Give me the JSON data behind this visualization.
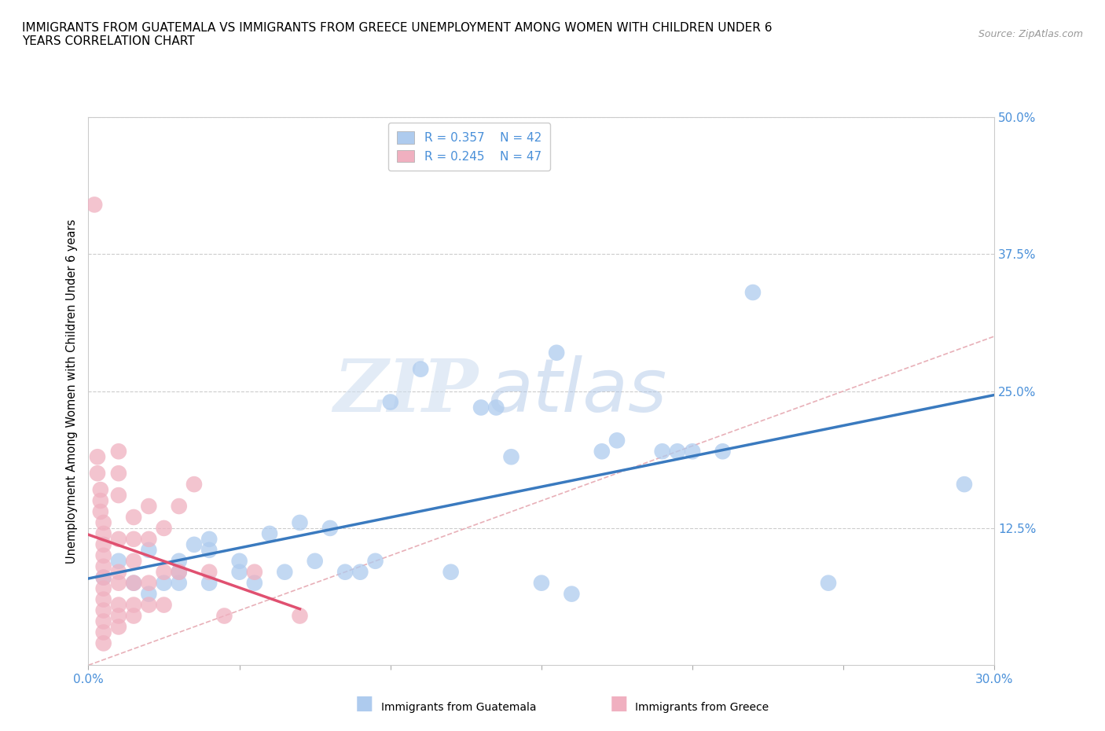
{
  "title_line1": "IMMIGRANTS FROM GUATEMALA VS IMMIGRANTS FROM GREECE UNEMPLOYMENT AMONG WOMEN WITH CHILDREN UNDER 6",
  "title_line2": "YEARS CORRELATION CHART",
  "source_text": "Source: ZipAtlas.com",
  "ylabel_text": "Unemployment Among Women with Children Under 6 years",
  "xlim": [
    0.0,
    0.3
  ],
  "ylim": [
    0.0,
    0.5
  ],
  "xticks": [
    0.0,
    0.05,
    0.1,
    0.15,
    0.2,
    0.25,
    0.3
  ],
  "xticklabels": [
    "0.0%",
    "",
    "",
    "",
    "",
    "",
    "30.0%"
  ],
  "yticks": [
    0.0,
    0.125,
    0.25,
    0.375,
    0.5
  ],
  "yticklabels_right": [
    "",
    "12.5%",
    "25.0%",
    "37.5%",
    "50.0%"
  ],
  "guatemala_color": "#aecbee",
  "greece_color": "#f0b0c0",
  "guatemala_line_color": "#3a7abf",
  "greece_line_color": "#e05070",
  "ref_line_color": "#e8b0b8",
  "legend_R_guatemala": "R = 0.357",
  "legend_N_guatemala": "N = 42",
  "legend_R_greece": "R = 0.245",
  "legend_N_greece": "N = 47",
  "watermark_zip": "ZIP",
  "watermark_atlas": "atlas",
  "guatemala_points": [
    [
      0.005,
      0.08
    ],
    [
      0.01,
      0.095
    ],
    [
      0.015,
      0.075
    ],
    [
      0.02,
      0.065
    ],
    [
      0.02,
      0.105
    ],
    [
      0.025,
      0.075
    ],
    [
      0.03,
      0.085
    ],
    [
      0.03,
      0.075
    ],
    [
      0.03,
      0.095
    ],
    [
      0.035,
      0.11
    ],
    [
      0.04,
      0.075
    ],
    [
      0.04,
      0.115
    ],
    [
      0.04,
      0.105
    ],
    [
      0.05,
      0.095
    ],
    [
      0.05,
      0.085
    ],
    [
      0.055,
      0.075
    ],
    [
      0.06,
      0.12
    ],
    [
      0.065,
      0.085
    ],
    [
      0.07,
      0.13
    ],
    [
      0.075,
      0.095
    ],
    [
      0.08,
      0.125
    ],
    [
      0.085,
      0.085
    ],
    [
      0.09,
      0.085
    ],
    [
      0.095,
      0.095
    ],
    [
      0.1,
      0.24
    ],
    [
      0.11,
      0.27
    ],
    [
      0.12,
      0.085
    ],
    [
      0.13,
      0.235
    ],
    [
      0.135,
      0.235
    ],
    [
      0.14,
      0.19
    ],
    [
      0.15,
      0.075
    ],
    [
      0.155,
      0.285
    ],
    [
      0.16,
      0.065
    ],
    [
      0.17,
      0.195
    ],
    [
      0.175,
      0.205
    ],
    [
      0.19,
      0.195
    ],
    [
      0.195,
      0.195
    ],
    [
      0.2,
      0.195
    ],
    [
      0.21,
      0.195
    ],
    [
      0.22,
      0.34
    ],
    [
      0.245,
      0.075
    ],
    [
      0.29,
      0.165
    ]
  ],
  "greece_points": [
    [
      0.002,
      0.42
    ],
    [
      0.003,
      0.19
    ],
    [
      0.003,
      0.175
    ],
    [
      0.004,
      0.16
    ],
    [
      0.004,
      0.15
    ],
    [
      0.004,
      0.14
    ],
    [
      0.005,
      0.13
    ],
    [
      0.005,
      0.12
    ],
    [
      0.005,
      0.11
    ],
    [
      0.005,
      0.1
    ],
    [
      0.005,
      0.09
    ],
    [
      0.005,
      0.08
    ],
    [
      0.005,
      0.07
    ],
    [
      0.005,
      0.06
    ],
    [
      0.005,
      0.05
    ],
    [
      0.005,
      0.04
    ],
    [
      0.005,
      0.03
    ],
    [
      0.005,
      0.02
    ],
    [
      0.01,
      0.195
    ],
    [
      0.01,
      0.175
    ],
    [
      0.01,
      0.155
    ],
    [
      0.01,
      0.115
    ],
    [
      0.01,
      0.085
    ],
    [
      0.01,
      0.075
    ],
    [
      0.01,
      0.055
    ],
    [
      0.01,
      0.045
    ],
    [
      0.01,
      0.035
    ],
    [
      0.015,
      0.135
    ],
    [
      0.015,
      0.115
    ],
    [
      0.015,
      0.095
    ],
    [
      0.015,
      0.075
    ],
    [
      0.015,
      0.055
    ],
    [
      0.015,
      0.045
    ],
    [
      0.02,
      0.145
    ],
    [
      0.02,
      0.115
    ],
    [
      0.02,
      0.075
    ],
    [
      0.02,
      0.055
    ],
    [
      0.025,
      0.125
    ],
    [
      0.025,
      0.085
    ],
    [
      0.025,
      0.055
    ],
    [
      0.03,
      0.145
    ],
    [
      0.03,
      0.085
    ],
    [
      0.035,
      0.165
    ],
    [
      0.04,
      0.085
    ],
    [
      0.045,
      0.045
    ],
    [
      0.055,
      0.085
    ],
    [
      0.07,
      0.045
    ]
  ]
}
